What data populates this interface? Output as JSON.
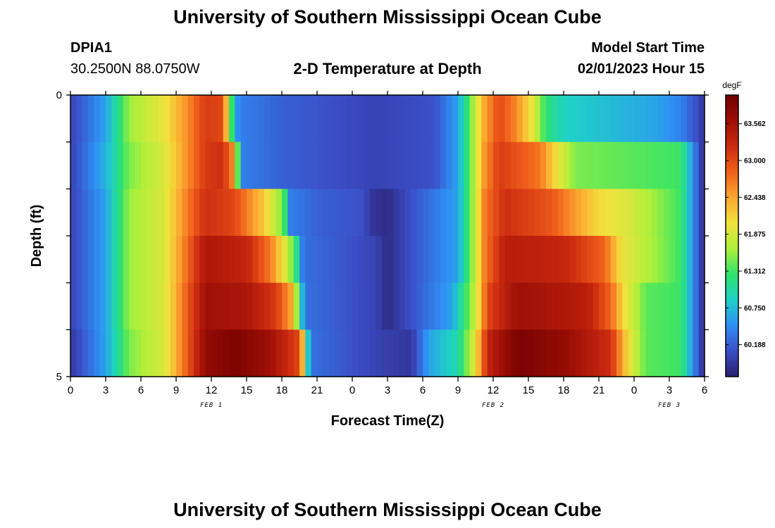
{
  "header": {
    "title": "University of Southern Mississippi Ocean Cube",
    "station_id": "DPIA1",
    "coordinates": "30.2500N  88.0750W",
    "plot_title": "2-D Temperature at Depth",
    "model_start_label": "Model Start Time",
    "model_start_value": "02/01/2023 Hour 15"
  },
  "footer": {
    "title": "University of Southern Mississippi Ocean Cube"
  },
  "chart_data": {
    "type": "heatmap",
    "title": "2-D Temperature at Depth",
    "xlabel": "Forecast Time(Z)",
    "ylabel": "Depth (ft)",
    "x_tick_labels": [
      "0",
      "3",
      "6",
      "9",
      "12",
      "15",
      "18",
      "21",
      "0",
      "3",
      "6",
      "9",
      "12",
      "15",
      "18",
      "21",
      "0",
      "3",
      "6"
    ],
    "x_range_hours": [
      0,
      54
    ],
    "y_tick_labels": [
      "0",
      "5"
    ],
    "y_range": [
      0,
      5
    ],
    "date_labels": [
      {
        "text": "FEB 1",
        "hour": 12
      },
      {
        "text": "FEB 2",
        "hour": 36
      },
      {
        "text": "FEB 3",
        "hour": 51
      }
    ],
    "colorbar": {
      "unit": "degF",
      "tick_labels": [
        "63.562",
        "63.000",
        "62.438",
        "61.875",
        "61.312",
        "60.750",
        "60.188"
      ],
      "range": [
        59.7,
        64.0
      ]
    },
    "colors": [
      "#2a1f6e",
      "#3b4ec8",
      "#2f8ff5",
      "#1fd0c8",
      "#2ee36a",
      "#aef03a",
      "#f2e23c",
      "#fba830",
      "#f0601a",
      "#cc2a10",
      "#9e0f06",
      "#700000"
    ],
    "depth_levels": [
      0,
      1,
      2,
      3,
      4,
      5
    ],
    "temperature_profiles": [
      [
        [
          0,
          60.0
        ],
        [
          3,
          60.6
        ],
        [
          5,
          61.6
        ],
        [
          8,
          62.0
        ],
        [
          10,
          62.6
        ],
        [
          11.5,
          63.1
        ],
        [
          13,
          63.0
        ],
        [
          13.6,
          61.5
        ],
        [
          14.3,
          60.4
        ],
        [
          18,
          60.2
        ],
        [
          26,
          60.0
        ],
        [
          31,
          60.1
        ],
        [
          33,
          60.6
        ],
        [
          34.5,
          61.8
        ],
        [
          35.2,
          62.4
        ],
        [
          36.5,
          63.0
        ],
        [
          38,
          62.6
        ],
        [
          39.5,
          61.9
        ],
        [
          40.5,
          61.2
        ],
        [
          42,
          60.9
        ],
        [
          50,
          60.6
        ],
        [
          52,
          60.4
        ],
        [
          53.7,
          60.0
        ],
        [
          54,
          59.7
        ]
      ],
      [
        [
          0,
          60.0
        ],
        [
          3,
          60.7
        ],
        [
          5,
          61.5
        ],
        [
          8,
          61.9
        ],
        [
          10,
          62.6
        ],
        [
          11.5,
          63.1
        ],
        [
          13,
          63.2
        ],
        [
          14.1,
          62.4
        ],
        [
          14.4,
          60.4
        ],
        [
          18,
          60.2
        ],
        [
          26,
          60.0
        ],
        [
          31,
          60.1
        ],
        [
          33,
          60.6
        ],
        [
          34.5,
          61.8
        ],
        [
          35.2,
          62.5
        ],
        [
          36.5,
          63.1
        ],
        [
          40,
          62.7
        ],
        [
          41.5,
          62.0
        ],
        [
          43,
          61.5
        ],
        [
          52,
          61.3
        ],
        [
          53.5,
          60.1
        ],
        [
          54,
          59.8
        ]
      ],
      [
        [
          0,
          60.0
        ],
        [
          3,
          60.6
        ],
        [
          5,
          61.6
        ],
        [
          8,
          61.9
        ],
        [
          10,
          62.7
        ],
        [
          11.5,
          63.2
        ],
        [
          14,
          63.0
        ],
        [
          16.5,
          62.2
        ],
        [
          18.2,
          61.4
        ],
        [
          18.6,
          60.4
        ],
        [
          21,
          60.2
        ],
        [
          25,
          60.1
        ],
        [
          25.5,
          59.9
        ],
        [
          27,
          59.8
        ],
        [
          29,
          60.1
        ],
        [
          33,
          60.6
        ],
        [
          34.5,
          61.8
        ],
        [
          35.3,
          62.7
        ],
        [
          37,
          63.2
        ],
        [
          41,
          62.9
        ],
        [
          45,
          62.1
        ],
        [
          47.5,
          61.9
        ],
        [
          52,
          61.3
        ],
        [
          53.5,
          60.1
        ],
        [
          54,
          59.8
        ]
      ],
      [
        [
          0,
          60.0
        ],
        [
          3,
          60.6
        ],
        [
          5,
          61.6
        ],
        [
          8,
          61.9
        ],
        [
          10,
          62.8
        ],
        [
          11.5,
          63.5
        ],
        [
          15,
          63.3
        ],
        [
          17,
          62.7
        ],
        [
          18.5,
          61.8
        ],
        [
          19.4,
          61.0
        ],
        [
          19.8,
          60.3
        ],
        [
          26,
          60.0
        ],
        [
          27,
          59.8
        ],
        [
          29,
          60.1
        ],
        [
          33,
          60.6
        ],
        [
          34.5,
          61.8
        ],
        [
          35.3,
          62.7
        ],
        [
          37,
          63.4
        ],
        [
          42,
          63.3
        ],
        [
          45.5,
          62.8
        ],
        [
          47,
          62.0
        ],
        [
          52,
          61.3
        ],
        [
          53.5,
          60.1
        ],
        [
          54,
          59.8
        ]
      ],
      [
        [
          0,
          60.0
        ],
        [
          3,
          60.6
        ],
        [
          5,
          61.6
        ],
        [
          8,
          61.9
        ],
        [
          10,
          62.9
        ],
        [
          11.5,
          63.6
        ],
        [
          15,
          63.5
        ],
        [
          17.5,
          63.1
        ],
        [
          18.9,
          62.4
        ],
        [
          19.4,
          61.3
        ],
        [
          20,
          60.3
        ],
        [
          26,
          60.0
        ],
        [
          27,
          59.8
        ],
        [
          29,
          60.1
        ],
        [
          32.5,
          60.6
        ],
        [
          34.5,
          61.8
        ],
        [
          35.5,
          63.0
        ],
        [
          38,
          63.6
        ],
        [
          44,
          63.4
        ],
        [
          46,
          62.8
        ],
        [
          47.3,
          62.0
        ],
        [
          49,
          61.4
        ],
        [
          52,
          61.3
        ],
        [
          53.5,
          60.1
        ],
        [
          54,
          59.8
        ]
      ],
      [
        [
          0,
          59.9
        ],
        [
          3,
          60.6
        ],
        [
          5,
          61.5
        ],
        [
          8,
          61.9
        ],
        [
          10,
          62.9
        ],
        [
          11.5,
          63.7
        ],
        [
          14,
          63.9
        ],
        [
          17,
          63.6
        ],
        [
          19.5,
          63.0
        ],
        [
          19.9,
          62.0
        ],
        [
          20.4,
          60.3
        ],
        [
          26,
          60.0
        ],
        [
          29,
          59.9
        ],
        [
          30.5,
          60.6
        ],
        [
          33,
          61.0
        ],
        [
          34.5,
          62.0
        ],
        [
          35.5,
          63.3
        ],
        [
          38,
          63.9
        ],
        [
          42,
          63.7
        ],
        [
          46,
          63.2
        ],
        [
          47.6,
          62.0
        ],
        [
          49,
          61.4
        ],
        [
          52,
          61.3
        ],
        [
          53.5,
          60.1
        ],
        [
          54,
          59.8
        ]
      ]
    ]
  }
}
